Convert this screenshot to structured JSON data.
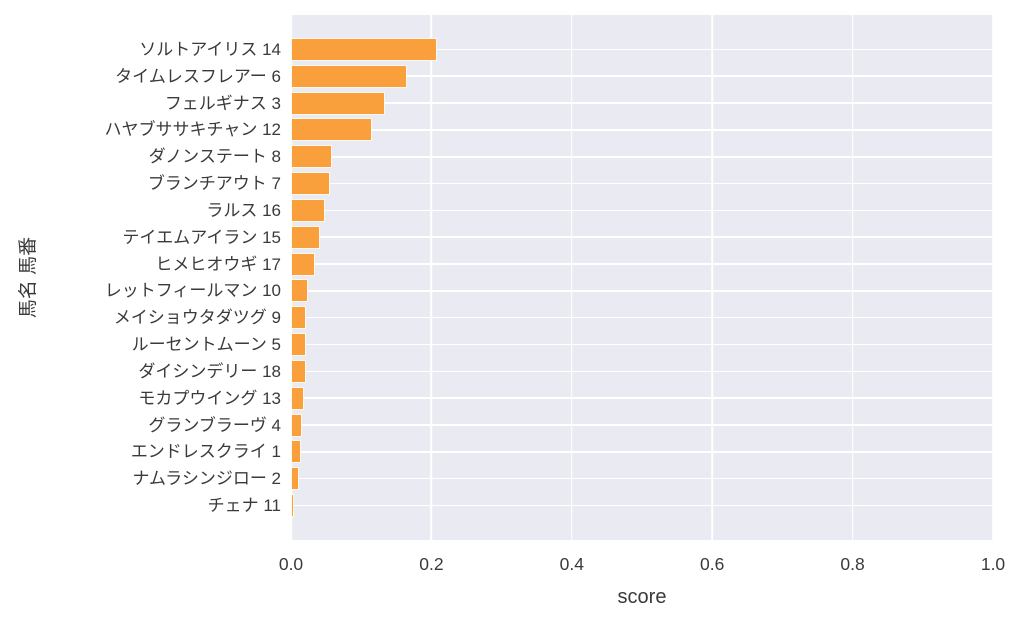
{
  "chart_data": {
    "type": "bar",
    "orientation": "horizontal",
    "title": "",
    "xlabel": "score",
    "ylabel": "馬名 馬番",
    "xlim": [
      0,
      1
    ],
    "xticks": [
      {
        "value": 0.0,
        "label": "0.0"
      },
      {
        "value": 0.2,
        "label": "0.2"
      },
      {
        "value": 0.4,
        "label": "0.4"
      },
      {
        "value": 0.6,
        "label": "0.6"
      },
      {
        "value": 0.8,
        "label": "0.8"
      },
      {
        "value": 1.0,
        "label": "1.0"
      }
    ],
    "categories": [
      "ソルトアイリス 14",
      "タイムレスフレアー 6",
      "フェルギナス 3",
      "ハヤブササキチャン 12",
      "ダノンステート 8",
      "ブランチアウト 7",
      "ラルス 16",
      "テイエムアイラン 15",
      "ヒメヒオウギ 17",
      "レットフィールマン 10",
      "メイショウタダツグ 9",
      "ルーセントムーン 5",
      "ダイシンデリー 18",
      "モカプウイング 13",
      "グランブラーヴ 4",
      "エンドレスクライ 1",
      "ナムラシンジロー 2",
      "チェナ 11"
    ],
    "values": [
      0.205,
      0.162,
      0.131,
      0.112,
      0.055,
      0.053,
      0.045,
      0.039,
      0.032,
      0.021,
      0.019,
      0.019,
      0.019,
      0.016,
      0.013,
      0.011,
      0.009,
      0.001
    ],
    "grid": true,
    "legend": false,
    "colors": {
      "bar": "#f9a03c",
      "plot_background": "#eaeaf2",
      "gridline": "#ffffff",
      "text": "#3a3a3a",
      "figure_background": "#ffffff"
    }
  }
}
